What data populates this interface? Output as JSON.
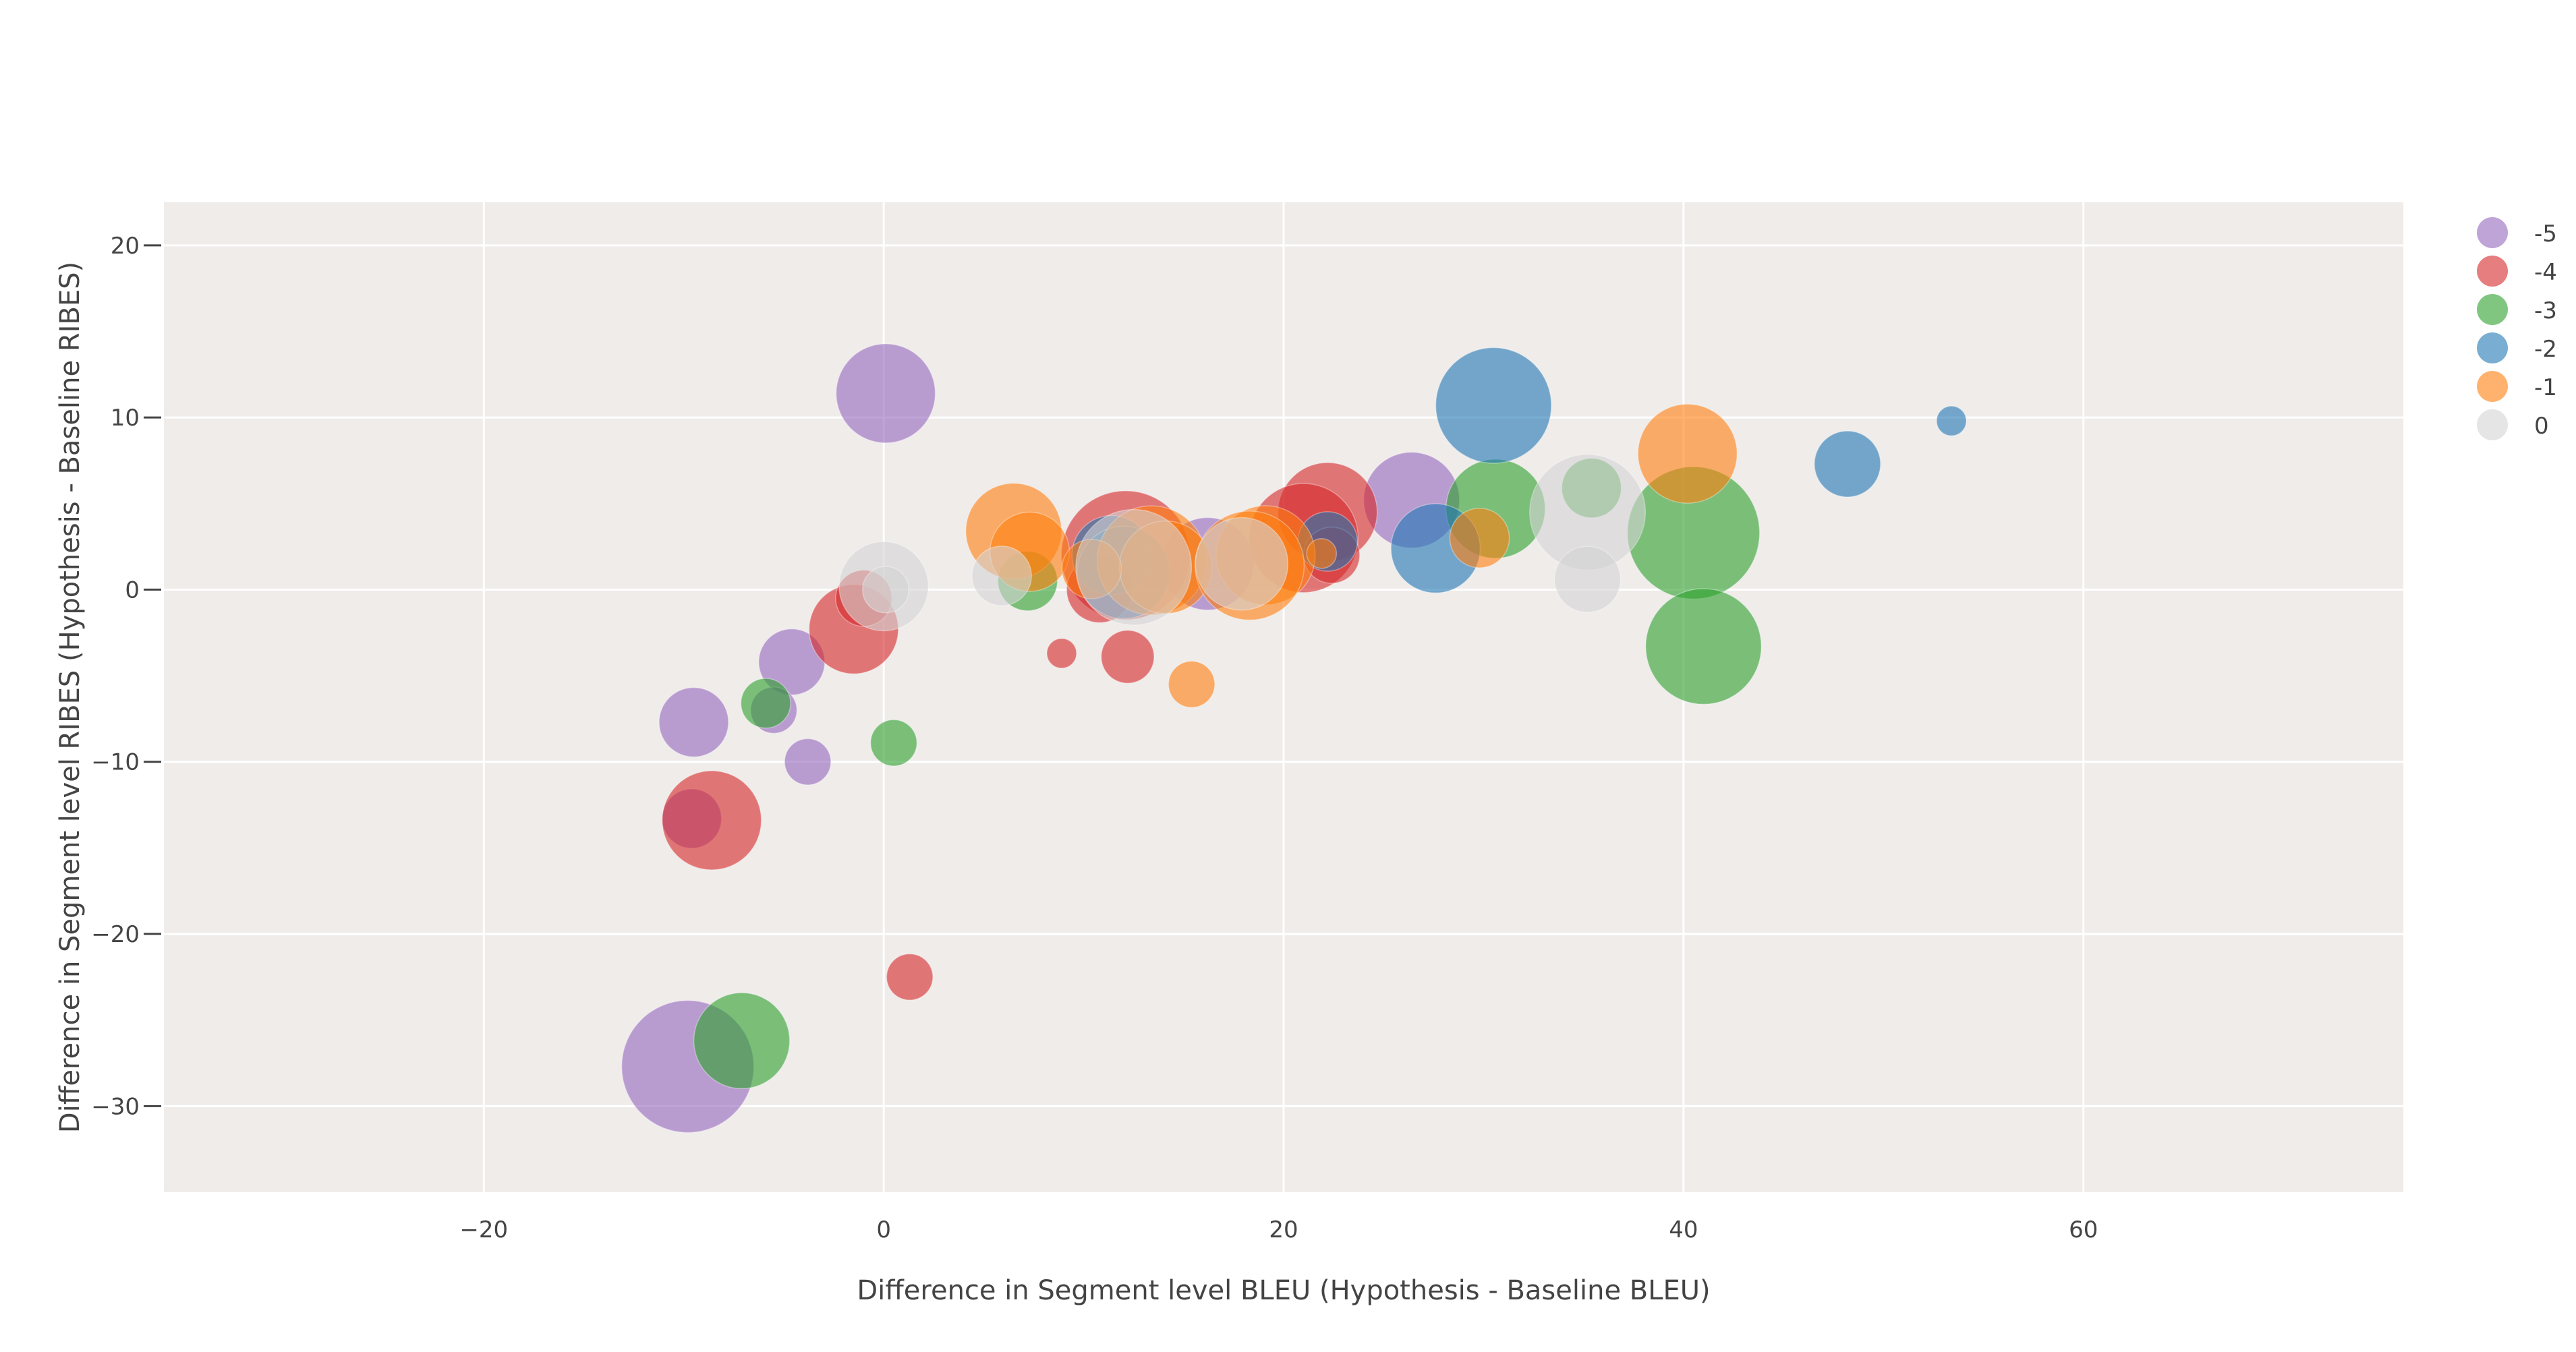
{
  "chart_data": {
    "type": "scatter",
    "title": "",
    "xlabel": "Difference in Segment level BLEU (Hypothesis - Baseline BLEU)",
    "ylabel": "Difference in Segment level RIBES (Hypothesis - Baseline RIBES)",
    "xlim": [
      -36,
      76
    ],
    "ylim": [
      -35,
      22.5
    ],
    "xticks": [
      -20,
      0,
      20,
      40,
      60
    ],
    "yticks": [
      -30,
      -20,
      -10,
      0,
      10,
      20
    ],
    "xtick_labels": [
      "−20",
      "0",
      "20",
      "40",
      "60"
    ],
    "ytick_labels": [
      "−30",
      "−20",
      "−10",
      "0",
      "10",
      "20"
    ],
    "grid": true,
    "legend_position": "top-right",
    "background_color": "#efecea",
    "series": [
      {
        "name": "-5",
        "color": "#9467bd",
        "points": [
          {
            "x": 0.1,
            "y": 11.4,
            "size": 30
          },
          {
            "x": 26.4,
            "y": 5.2,
            "size": 29
          },
          {
            "x": 16.2,
            "y": 1.5,
            "size": 28
          },
          {
            "x": -4.6,
            "y": -4.2,
            "size": 20
          },
          {
            "x": -9.5,
            "y": -7.7,
            "size": 21
          },
          {
            "x": -5.5,
            "y": -7.0,
            "size": 14
          },
          {
            "x": -3.8,
            "y": -10.0,
            "size": 14
          },
          {
            "x": -9.6,
            "y": -13.3,
            "size": 18
          },
          {
            "x": -9.8,
            "y": -27.7,
            "size": 40
          }
        ]
      },
      {
        "name": "-4",
        "color": "#d62728",
        "points": [
          {
            "x": 22.2,
            "y": 4.5,
            "size": 30
          },
          {
            "x": 21.0,
            "y": 3.0,
            "size": 33
          },
          {
            "x": 12.1,
            "y": 2.0,
            "size": 39
          },
          {
            "x": 22.4,
            "y": 2.0,
            "size": 17
          },
          {
            "x": 10.8,
            "y": 0.0,
            "size": 20
          },
          {
            "x": -1.5,
            "y": -2.3,
            "size": 27
          },
          {
            "x": -1.0,
            "y": -0.5,
            "size": 17
          },
          {
            "x": 8.9,
            "y": -3.7,
            "size": 9
          },
          {
            "x": 12.2,
            "y": -3.9,
            "size": 16
          },
          {
            "x": -8.6,
            "y": -13.4,
            "size": 30
          },
          {
            "x": 1.3,
            "y": -22.5,
            "size": 14
          }
        ]
      },
      {
        "name": "-3",
        "color": "#2ca02c",
        "points": [
          {
            "x": 40.5,
            "y": 3.3,
            "size": 40
          },
          {
            "x": 30.6,
            "y": 4.7,
            "size": 30
          },
          {
            "x": 41.0,
            "y": -3.3,
            "size": 35
          },
          {
            "x": 35.4,
            "y": 5.9,
            "size": 18
          },
          {
            "x": 7.2,
            "y": 0.5,
            "size": 18
          },
          {
            "x": -5.9,
            "y": -6.6,
            "size": 15
          },
          {
            "x": 0.5,
            "y": -8.9,
            "size": 14
          },
          {
            "x": -7.1,
            "y": -26.2,
            "size": 29
          }
        ]
      },
      {
        "name": "-2",
        "color": "#1f77b4",
        "points": [
          {
            "x": 30.5,
            "y": 10.7,
            "size": 35
          },
          {
            "x": 48.2,
            "y": 7.3,
            "size": 20
          },
          {
            "x": 53.4,
            "y": 9.8,
            "size": 9
          },
          {
            "x": 27.6,
            "y": 2.4,
            "size": 27
          },
          {
            "x": 22.2,
            "y": 2.8,
            "size": 18
          },
          {
            "x": 11.4,
            "y": 2.0,
            "size": 24
          },
          {
            "x": 12.0,
            "y": 1.0,
            "size": 28
          }
        ]
      },
      {
        "name": "-1",
        "color": "#ff7f0e",
        "points": [
          {
            "x": 40.2,
            "y": 7.9,
            "size": 30
          },
          {
            "x": 6.5,
            "y": 3.4,
            "size": 29
          },
          {
            "x": 7.3,
            "y": 2.2,
            "size": 24
          },
          {
            "x": 13.4,
            "y": 1.7,
            "size": 33
          },
          {
            "x": 14.1,
            "y": 1.3,
            "size": 28
          },
          {
            "x": 19.1,
            "y": 2.0,
            "size": 30
          },
          {
            "x": 18.3,
            "y": 1.4,
            "size": 33
          },
          {
            "x": 29.8,
            "y": 3.0,
            "size": 18
          },
          {
            "x": 15.4,
            "y": -5.5,
            "size": 14
          },
          {
            "x": 10.4,
            "y": 1.2,
            "size": 18
          },
          {
            "x": 21.9,
            "y": 2.1,
            "size": 9
          }
        ]
      },
      {
        "name": "0",
        "color": "#d3d3d3",
        "points": [
          {
            "x": 35.2,
            "y": 4.5,
            "size": 35
          },
          {
            "x": 35.2,
            "y": 0.6,
            "size": 20
          },
          {
            "x": 12.5,
            "y": 1.3,
            "size": 35
          },
          {
            "x": 17.9,
            "y": 1.5,
            "size": 28
          },
          {
            "x": 5.9,
            "y": 0.8,
            "size": 18
          },
          {
            "x": 0.0,
            "y": 0.2,
            "size": 27
          },
          {
            "x": 0.1,
            "y": 0.0,
            "size": 14
          }
        ]
      }
    ]
  }
}
